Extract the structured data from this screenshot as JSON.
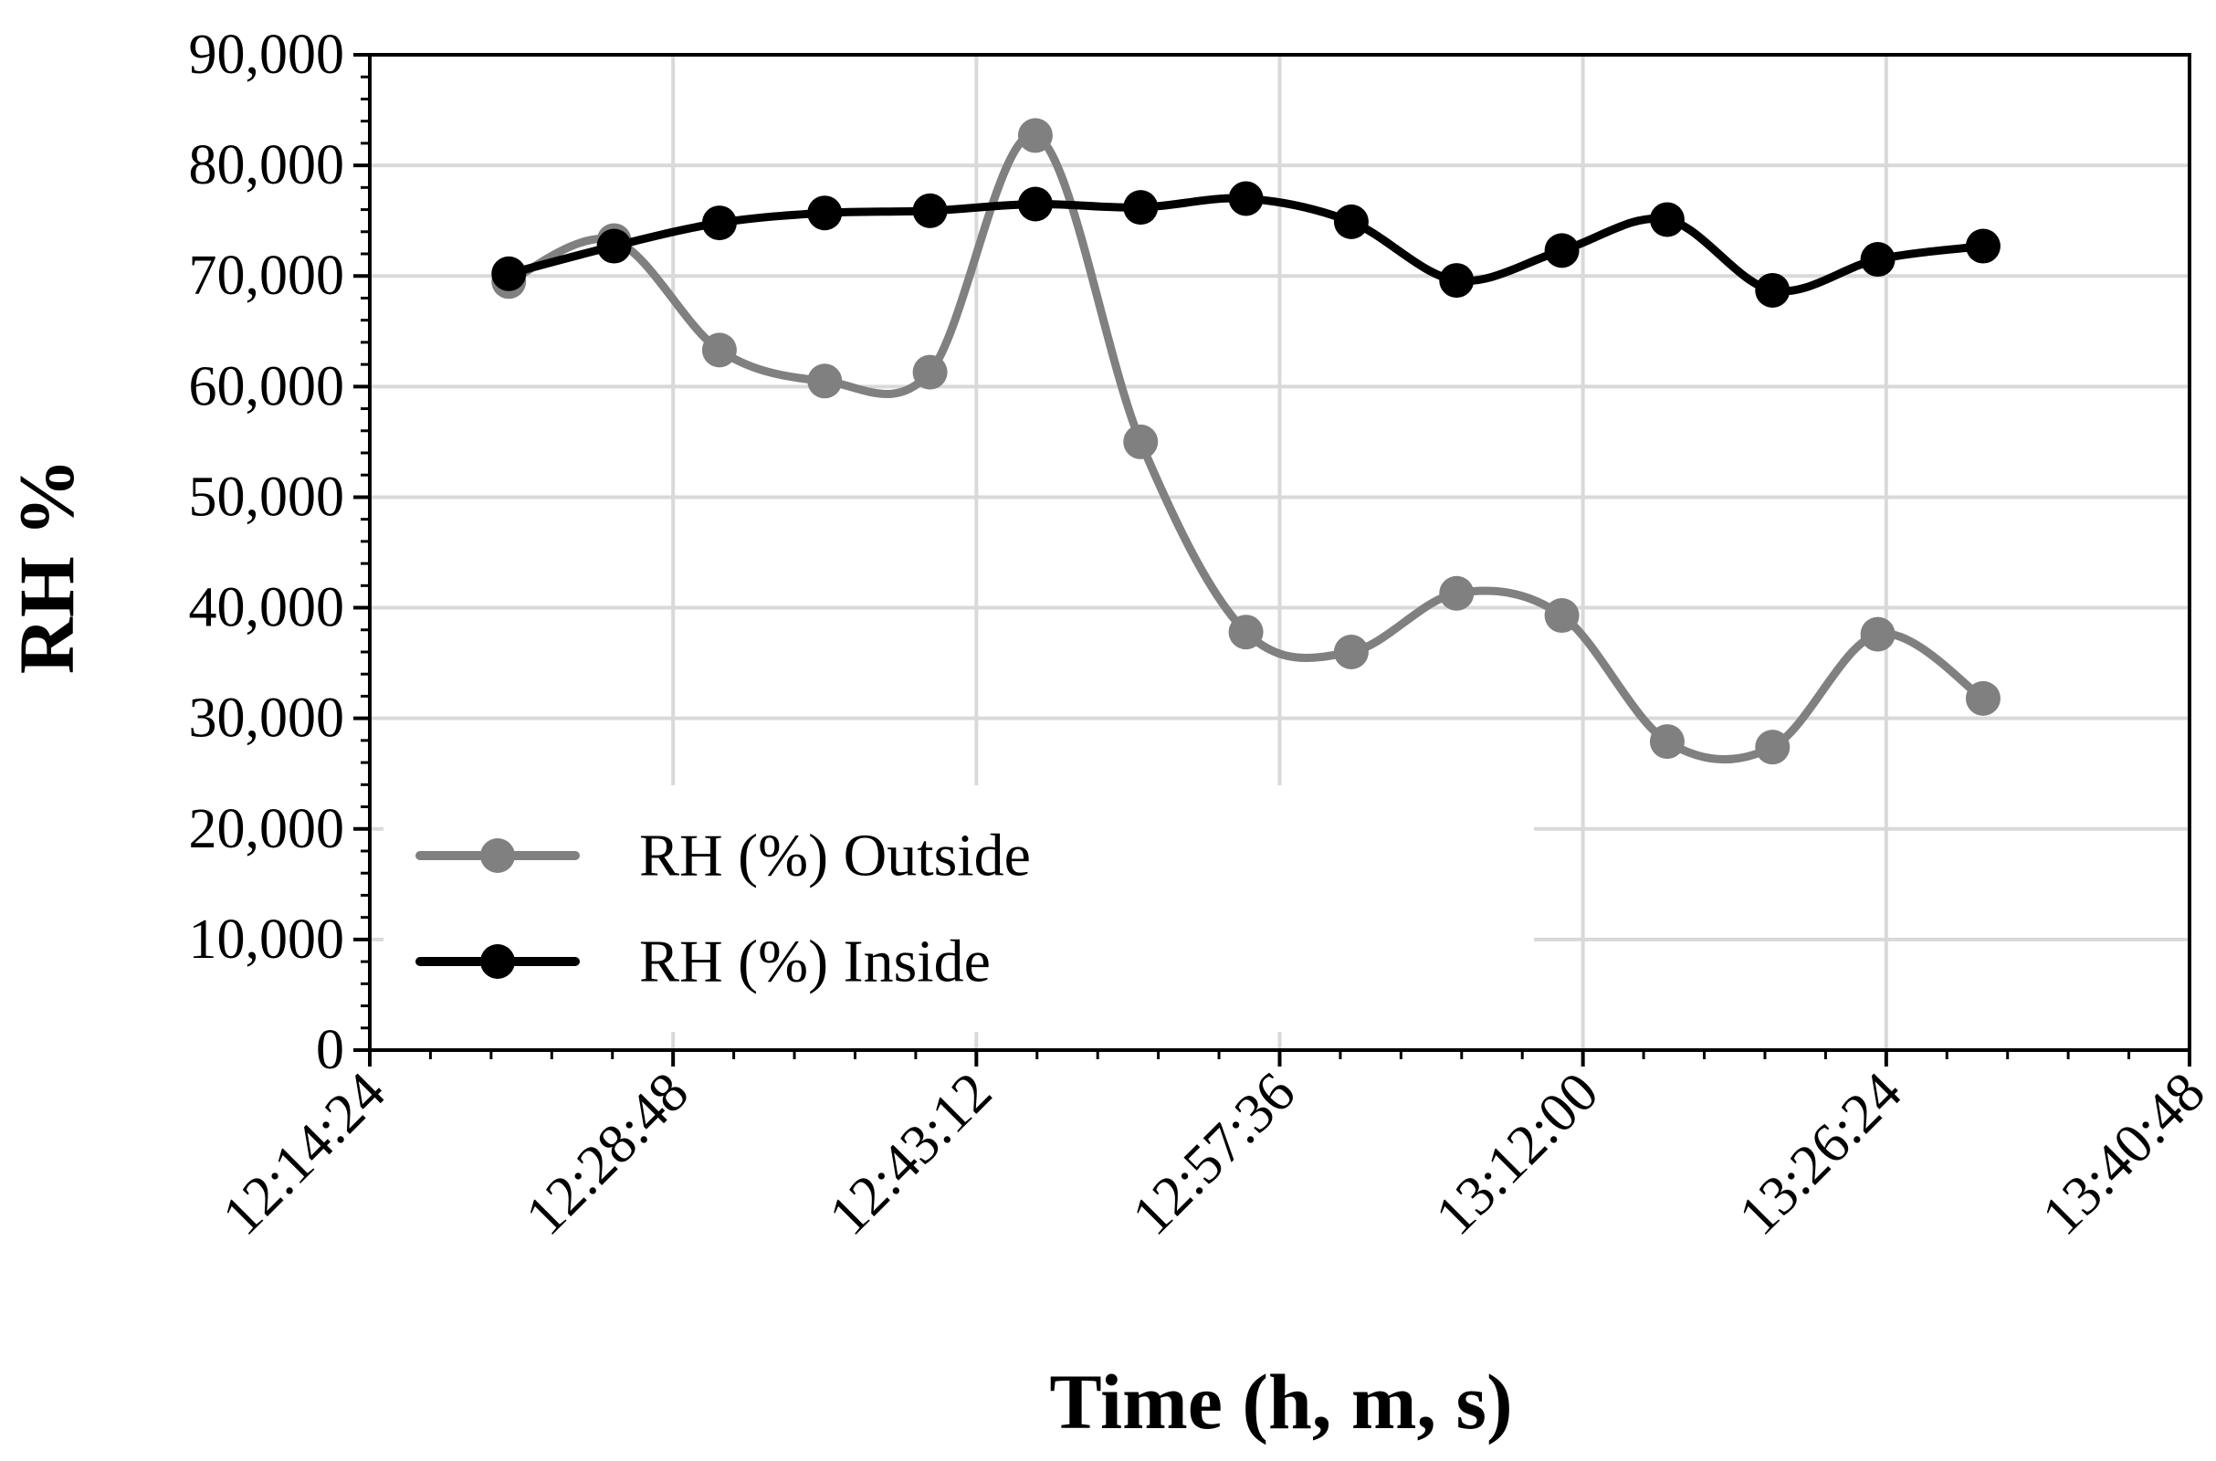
{
  "chart_data": {
    "type": "line",
    "title": "",
    "xlabel": "Time (h, m, s)",
    "ylabel": "RH %",
    "xlim": [
      "12:14:24",
      "13:40:48"
    ],
    "ylim": [
      0,
      90000
    ],
    "x_ticks": [
      "12:14:24",
      "12:28:48",
      "12:43:12",
      "12:57:36",
      "13:12:00",
      "13:26:24",
      "13:40:48"
    ],
    "y_ticks": [
      "0",
      "10,000",
      "20,000",
      "30,000",
      "40,000",
      "50,000",
      "60,000",
      "70,000",
      "80,000",
      "90,000"
    ],
    "grid": true,
    "smooth": true,
    "legend_position": "lower-left",
    "x": [
      "12:21:00",
      "12:26:00",
      "12:31:00",
      "12:36:00",
      "12:41:00",
      "12:46:00",
      "12:51:00",
      "12:56:00",
      "13:01:00",
      "13:06:00",
      "13:11:00",
      "13:16:00",
      "13:21:00",
      "13:26:00",
      "13:31:00"
    ],
    "series": [
      {
        "name": "RH (%) Outside",
        "color": "#808080",
        "values": [
          69500,
          73200,
          63300,
          60500,
          61300,
          82700,
          55000,
          37800,
          36000,
          41300,
          39300,
          27900,
          27400,
          37600,
          31800
        ]
      },
      {
        "name": "RH (%) Inside",
        "color": "#000000",
        "values": [
          70200,
          72700,
          74800,
          75700,
          75900,
          76500,
          76200,
          77000,
          74900,
          69600,
          72300,
          75100,
          68700,
          71500,
          72700
        ]
      }
    ]
  }
}
